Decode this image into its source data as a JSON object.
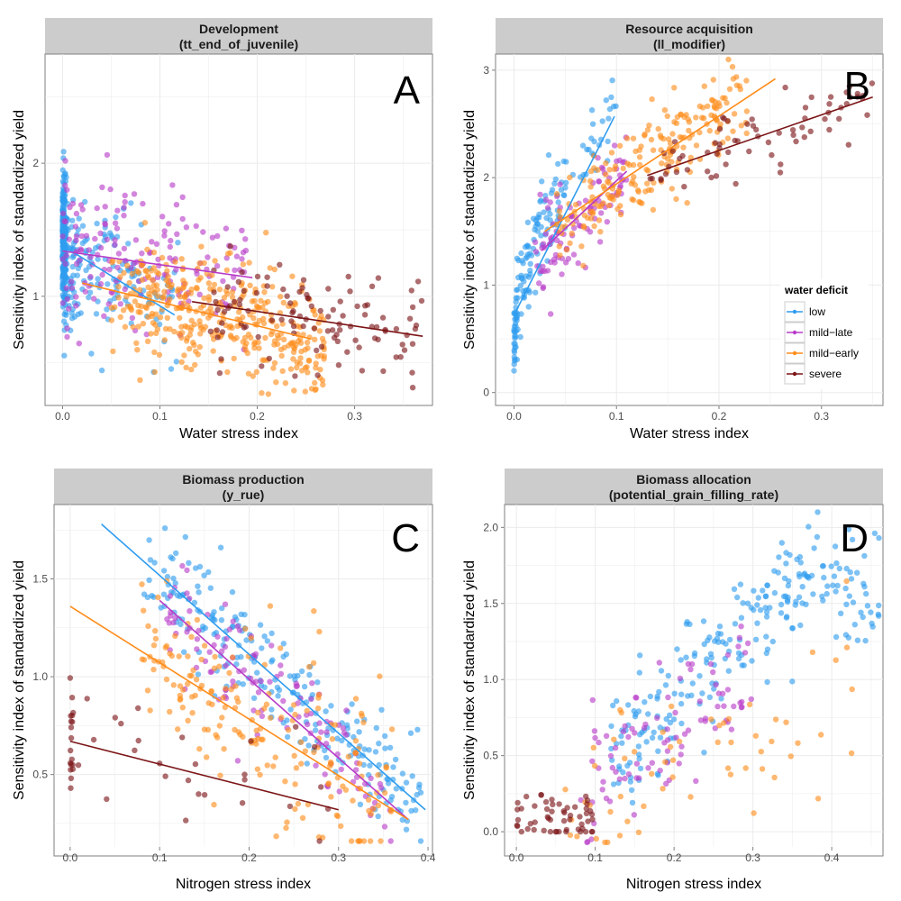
{
  "colors": {
    "low": "#2f9cef",
    "mild-late": "#b83cc8",
    "mild-early": "#ff8c1a",
    "severe": "#7b1416",
    "strip_bg": "#cccccc",
    "grid": "#ebebeb"
  },
  "legend": {
    "title": "water deficit",
    "entries": [
      {
        "key": "low",
        "label": "low"
      },
      {
        "key": "mild-late",
        "label": "mild−late"
      },
      {
        "key": "mild-early",
        "label": "mild−early"
      },
      {
        "key": "severe",
        "label": "severe"
      }
    ]
  },
  "chart_data": [
    {
      "type": "scatter",
      "id": "A",
      "panel_letter": "A",
      "title": "Development",
      "subtitle": "(tt_end_of_juvenile)",
      "xlabel": "Water stress index",
      "ylabel": "Sensitivity index of standardized yield",
      "xlim": [
        -0.018,
        0.38
      ],
      "ylim": [
        0.18,
        2.82
      ],
      "xticks": [
        0.0,
        0.1,
        0.2,
        0.3
      ],
      "xticklabels": [
        "0.0",
        "0.1",
        "0.2",
        "0.3"
      ],
      "yticks": [
        1,
        2
      ],
      "yticklabels": [
        "1",
        "2"
      ],
      "series": [
        {
          "name": "low",
          "n": 360,
          "x_range": [
            0.0,
            0.12
          ],
          "x_power": 3.0,
          "x_zero_frac": 0.4,
          "trend": [
            [
              0.0,
              1.38
            ],
            [
              0.115,
              0.86
            ]
          ],
          "spread": 0.26
        },
        {
          "name": "mild-late",
          "n": 170,
          "x_range": [
            0.0,
            0.19
          ],
          "x_power": 1.5,
          "x_zero_frac": 0,
          "trend": [
            [
              0.0,
              1.34
            ],
            [
              0.195,
              1.14
            ]
          ],
          "spread": 0.3
        },
        {
          "name": "mild-early",
          "n": 380,
          "x_range": [
            0.05,
            0.27
          ],
          "x_power": 1.0,
          "x_zero_frac": 0,
          "trend": [
            [
              0.02,
              1.1
            ],
            [
              0.255,
              0.68
            ]
          ],
          "spread": 0.22
        },
        {
          "name": "severe",
          "n": 110,
          "x_range": [
            0.15,
            0.37
          ],
          "x_power": 1.0,
          "x_zero_frac": 0,
          "trend": [
            [
              0.133,
              0.96
            ],
            [
              0.37,
              0.7
            ]
          ],
          "spread": 0.2
        }
      ]
    },
    {
      "type": "scatter",
      "id": "B",
      "panel_letter": "B",
      "title": "Resource acquisition",
      "subtitle": "(ll_modifier)",
      "xlabel": "Water stress index",
      "ylabel": "Sensitivity index of standardized yield",
      "xlim": [
        -0.018,
        0.36
      ],
      "ylim": [
        -0.12,
        3.15
      ],
      "xticks": [
        0.0,
        0.1,
        0.2,
        0.3
      ],
      "xticklabels": [
        "0.0",
        "0.1",
        "0.2",
        "0.3"
      ],
      "yticks": [
        0,
        1,
        2,
        3
      ],
      "yticklabels": [
        "0",
        "1",
        "2",
        "3"
      ],
      "legend_position": "right",
      "series": [
        {
          "name": "low",
          "n": 160,
          "x_range": [
            0.0,
            0.1
          ],
          "x_power": 2.0,
          "x_zero_frac": 0.1,
          "trend": [
            [
              0.0,
              0.72
            ],
            [
              0.098,
              2.57
            ]
          ],
          "curve": "log_rise",
          "spread": 0.22
        },
        {
          "name": "mild-late",
          "n": 100,
          "x_range": [
            0.02,
            0.11
          ],
          "x_power": 1.0,
          "x_zero_frac": 0,
          "trend": [
            [
              0.027,
              1.32
            ],
            [
              0.11,
              2.06
            ]
          ],
          "spread": 0.22
        },
        {
          "name": "mild-early",
          "n": 210,
          "x_range": [
            0.04,
            0.23
          ],
          "x_power": 1.0,
          "x_zero_frac": 0,
          "trend": [
            [
              0.03,
              1.5
            ],
            [
              0.255,
              2.92
            ]
          ],
          "spread": 0.22
        },
        {
          "name": "severe",
          "n": 70,
          "x_range": [
            0.13,
            0.35
          ],
          "x_power": 1.0,
          "x_zero_frac": 0,
          "trend": [
            [
              0.13,
              2.02
            ],
            [
              0.35,
              2.75
            ]
          ],
          "spread": 0.18
        }
      ]
    },
    {
      "type": "scatter",
      "id": "C",
      "panel_letter": "C",
      "title": "Biomass production",
      "subtitle": "(y_rue)",
      "xlabel": "Nitrogen stress index",
      "ylabel": "Sensitivity index of standardized yield",
      "xlim": [
        -0.018,
        0.405
      ],
      "ylim": [
        0.13,
        1.88
      ],
      "xticks": [
        0.0,
        0.1,
        0.2,
        0.3,
        0.4
      ],
      "xticklabels": [
        "0.0",
        "0.1",
        "0.2",
        "0.3",
        "0.4"
      ],
      "yticks": [
        0.5,
        1.0,
        1.5
      ],
      "yticklabels": [
        "0.5",
        "1.0",
        "1.5"
      ],
      "series": [
        {
          "name": "low",
          "n": 230,
          "x_range": [
            0.08,
            0.4
          ],
          "x_power": 1.0,
          "x_zero_frac": 0,
          "trend": [
            [
              0.035,
              1.78
            ],
            [
              0.397,
              0.32
            ]
          ],
          "spread": 0.14
        },
        {
          "name": "mild-late",
          "n": 120,
          "x_range": [
            0.1,
            0.36
          ],
          "x_power": 1.0,
          "x_zero_frac": 0,
          "trend": [
            [
              0.1,
              1.39
            ],
            [
              0.378,
              0.27
            ]
          ],
          "spread": 0.16
        },
        {
          "name": "mild-early",
          "n": 190,
          "x_range": [
            0.08,
            0.36
          ],
          "x_power": 1.0,
          "x_zero_frac": 0,
          "trend": [
            [
              0.0,
              1.36
            ],
            [
              0.378,
              0.27
            ]
          ],
          "spread": 0.24
        },
        {
          "name": "severe",
          "n": 45,
          "x_range": [
            0.0,
            0.3
          ],
          "x_power": 1.0,
          "x_zero_frac": 0.3,
          "trend": [
            [
              0.0,
              0.67
            ],
            [
              0.3,
              0.32
            ]
          ],
          "spread": 0.16
        }
      ]
    },
    {
      "type": "scatter",
      "id": "D",
      "panel_letter": "D",
      "title": "Biomass allocation",
      "subtitle": "(potential_grain_filling_rate)",
      "xlabel": "Nitrogen stress index",
      "ylabel": "Sensitivity index of standardized yield",
      "xlim": [
        -0.015,
        0.465
      ],
      "ylim": [
        -0.1,
        2.15
      ],
      "xticks": [
        0.0,
        0.1,
        0.2,
        0.3,
        0.4
      ],
      "xticklabels": [
        "0.0",
        "0.1",
        "0.2",
        "0.3",
        "0.4"
      ],
      "yticks": [
        0.0,
        0.5,
        1.0,
        1.5,
        2.0
      ],
      "yticklabels": [
        "0.0",
        "0.5",
        "1.0",
        "1.5",
        "2.0"
      ],
      "series": [
        {
          "name": "low",
          "n": 240,
          "x_range": [
            0.12,
            0.46
          ],
          "x_power": 1.0,
          "x_zero_frac": 0,
          "trend": [
            [
              0.12,
              0.5
            ],
            [
              0.38,
              1.72
            ]
          ],
          "curve": "plateau",
          "spread": 0.22
        },
        {
          "name": "mild-late",
          "n": 90,
          "x_range": [
            0.08,
            0.3
          ],
          "x_power": 1.0,
          "x_zero_frac": 0,
          "trend": [
            [
              0.08,
              0.25
            ],
            [
              0.3,
              1.05
            ]
          ],
          "spread": 0.2
        },
        {
          "name": "mild-early",
          "n": 60,
          "x_range": [
            0.06,
            0.43
          ],
          "x_power": 1.0,
          "x_zero_frac": 0,
          "trend": [
            [
              0.06,
              0.15
            ],
            [
              0.43,
              0.95
            ]
          ],
          "spread": 0.25
        },
        {
          "name": "severe",
          "n": 55,
          "x_range": [
            0.0,
            0.1
          ],
          "x_power": 1.0,
          "x_zero_frac": 0,
          "trend": [
            [
              0.0,
              0.1
            ],
            [
              0.1,
              0.1
            ]
          ],
          "spread": 0.09
        }
      ]
    }
  ]
}
